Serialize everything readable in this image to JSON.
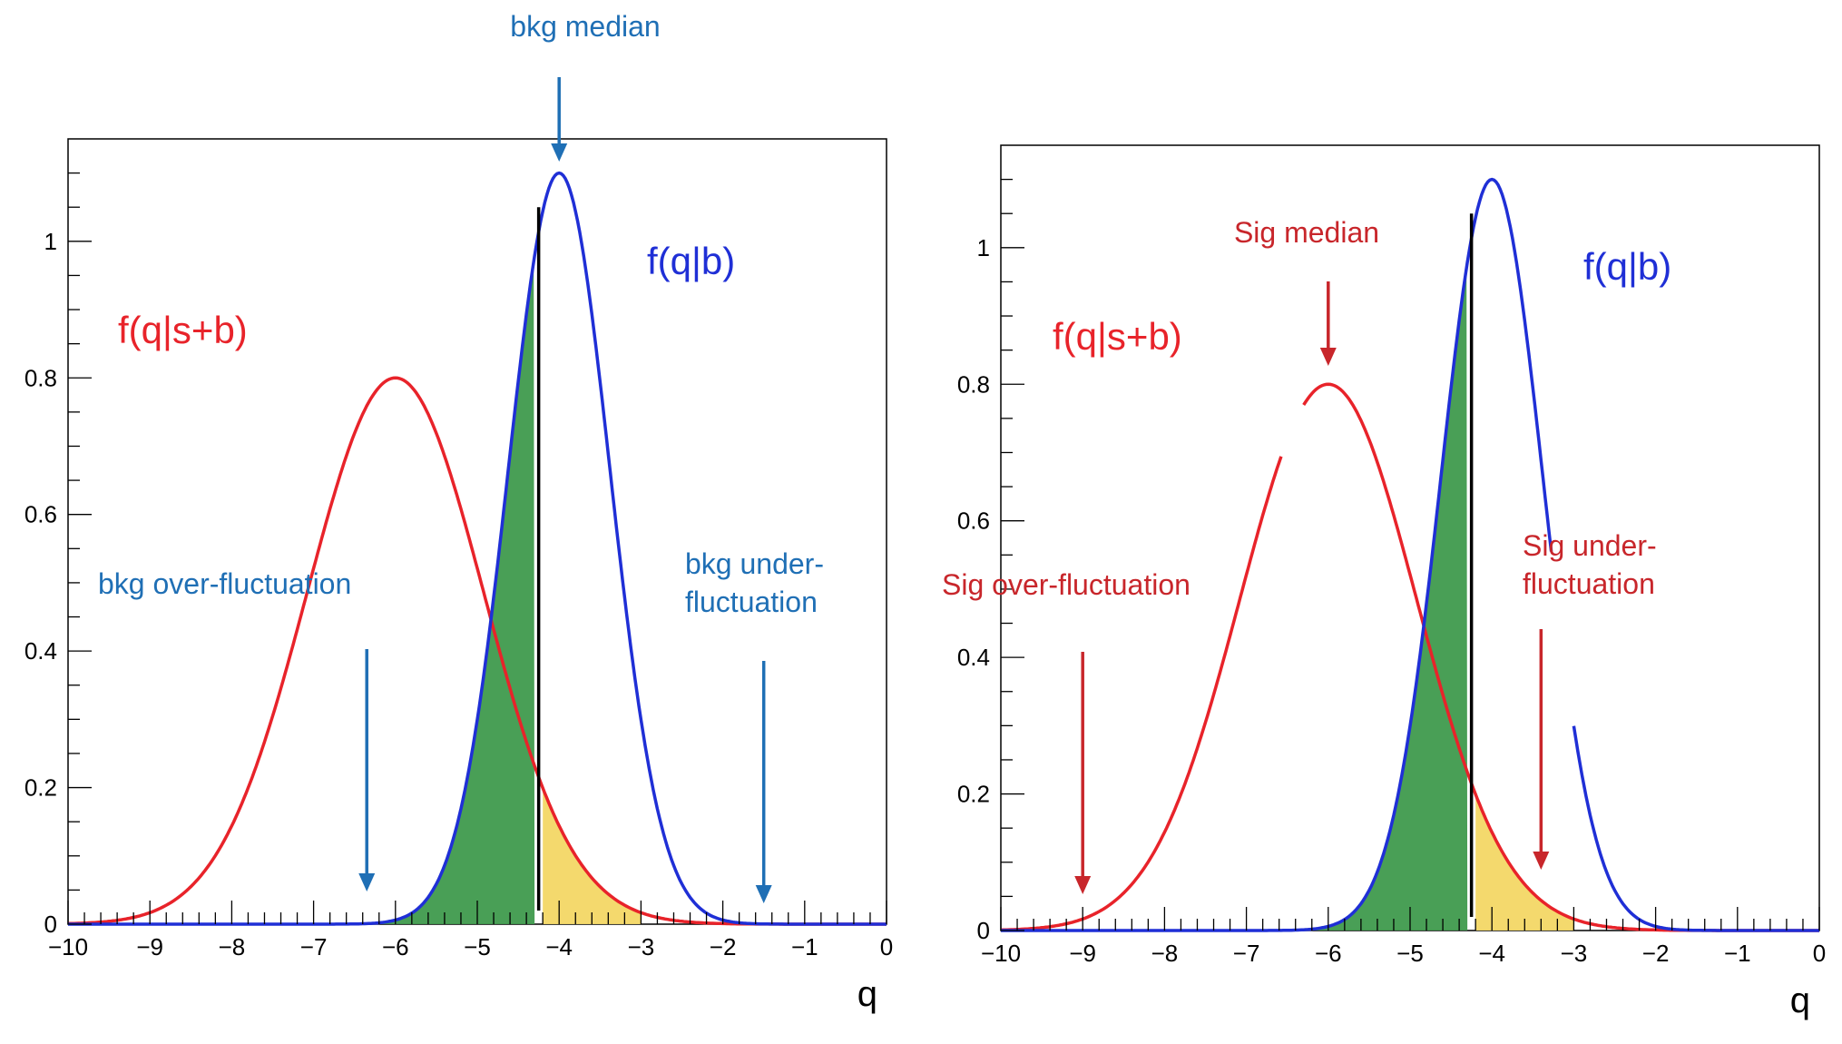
{
  "chart_data": [
    {
      "type": "line",
      "xlabel": "q",
      "ylabel": "",
      "xlim": [
        -10,
        0
      ],
      "ylim": [
        0,
        1.15
      ],
      "grid": false,
      "x_ticks": [
        "−10",
        "−9",
        "−8",
        "−7",
        "−6",
        "−5",
        "−4",
        "−3",
        "−2",
        "−1",
        "0"
      ],
      "y_ticks": [
        "0",
        "0.2",
        "0.4",
        "0.6",
        "0.8",
        "1"
      ],
      "series": [
        {
          "name": "f(q|s+b)",
          "color": "#e8232a",
          "mean": -6.0,
          "sigma": 1.08,
          "peak": 0.8
        },
        {
          "name": "f(q|b)",
          "color": "#1f2fd6",
          "mean": -4.0,
          "sigma": 0.62,
          "peak": 1.1
        }
      ],
      "cut_q": -4.25,
      "shaded_regions": [
        {
          "label": "green",
          "color": "#3f9a4d",
          "from": -6.35,
          "to": -4.3,
          "under": "f(q|b)"
        },
        {
          "label": "yellow",
          "color": "#f3d765",
          "from": -4.2,
          "to": -3.0,
          "under": "f(q|s+b)"
        }
      ],
      "annotations": [
        {
          "text": "bkg median",
          "color": "#1f6fb5",
          "arrow_x": -4.0
        },
        {
          "text": "bkg over-fluctuation",
          "color": "#1f6fb5",
          "arrow_x": -6.35
        },
        {
          "text": "bkg under-",
          "text2": "fluctuation",
          "color": "#1f6fb5",
          "arrow_x": -1.5
        },
        {
          "text": "f(q|s+b)",
          "color": "#e8232a"
        },
        {
          "text": "f(q|b)",
          "color": "#1f2fd6"
        }
      ]
    },
    {
      "type": "line",
      "xlabel": "q",
      "ylabel": "",
      "xlim": [
        -10,
        0
      ],
      "ylim": [
        0,
        1.15
      ],
      "grid": false,
      "x_ticks": [
        "−10",
        "−9",
        "−8",
        "−7",
        "−6",
        "−5",
        "−4",
        "−3",
        "−2",
        "−1",
        "0"
      ],
      "y_ticks": [
        "0",
        "0.2",
        "0.4",
        "0.6",
        "0.8",
        "1"
      ],
      "series": [
        {
          "name": "f(q|s+b)",
          "color": "#e8232a",
          "mean": -6.0,
          "sigma": 1.08,
          "peak": 0.8
        },
        {
          "name": "f(q|b)",
          "color": "#1f2fd6",
          "mean": -4.0,
          "sigma": 0.62,
          "peak": 1.1
        }
      ],
      "cut_q": -4.25,
      "shaded_regions": [
        {
          "label": "green",
          "color": "#3f9a4d",
          "from": -6.35,
          "to": -4.3,
          "under": "f(q|b)"
        },
        {
          "label": "yellow",
          "color": "#f3d765",
          "from": -4.2,
          "to": -3.0,
          "under": "f(q|s+b)"
        }
      ],
      "annotations": [
        {
          "text": "Sig median",
          "color": "#c8262b",
          "arrow_x": -6.0
        },
        {
          "text": "Sig over-fluctuation",
          "color": "#c8262b",
          "arrow_x": -9.0
        },
        {
          "text": "Sig under-",
          "text2": "fluctuation",
          "color": "#c8262b",
          "arrow_x": -3.4
        },
        {
          "text": "f(q|s+b)",
          "color": "#e8232a"
        },
        {
          "text": "f(q|b)",
          "color": "#1f2fd6"
        }
      ]
    }
  ]
}
